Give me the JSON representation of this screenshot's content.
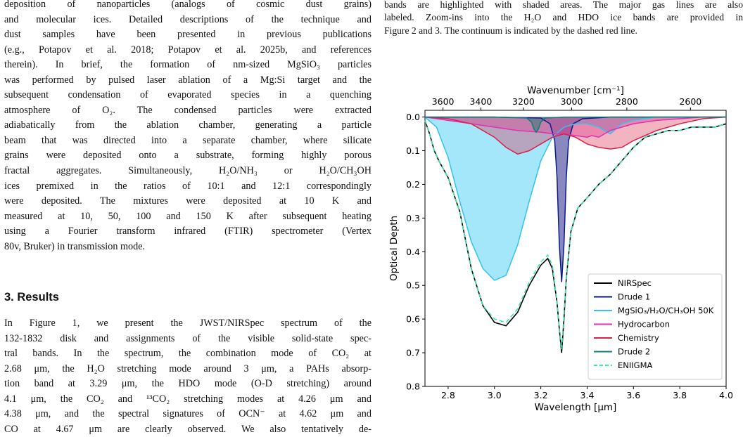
{
  "left_column": {
    "para1_lines": [
      "deposition of nanoparticles (analogs of cosmic dust grains)",
      "and molecular ices. Detailed descriptions of the technique and",
      "dust samples have been presented in previous publications",
      "(e.g., Potapov et al. 2018; Potapov et al. 2025b, and references",
      "therein). In brief, the formation of nm-sized MgSiO₃ particles",
      "was performed by pulsed laser ablation of a Mg:Si target and the",
      "subsequent condensation of evaporated species in a quenching",
      "atmosphere of O₂. The condensed particles were extracted",
      "adiabatically from the ablation chamber, generating a particle",
      "beam that was directed into a separate chamber, where silicate",
      "grains were deposited onto a substrate, forming highly porous",
      "fractal aggregates. Simultaneously, H₂O/NH₃ or H₂O/CH₃OH",
      "ices premixed in the ratios of 10:1 and 12:1 correspondingly",
      "were deposited. The mixtures were deposited at 10 K and",
      "measured at 10, 50, 100 and 150 K after subsequent heating",
      "using a Fourier transform infrared (FTIR) spectrometer (Vertex",
      "80v, Bruker) in transmission mode."
    ],
    "section_title": "3. Results",
    "para2_lines": [
      "In Figure 1, we present the JWST/NIRSpec spectrum of the",
      "132-1832 disk and assignments of the visible solid-state spec-",
      "tral bands. In the spectrum, the combination mode of CO₂ at",
      "2.68 μm, the H₂O stretching mode around 3 μm, a PAHs absorp-",
      "tion band at 3.29 μm, the HDO mode (O-D stretching) around",
      "4.1 μm, the CO₂ and ¹³CO₂ stretching modes at 4.26 μm and",
      "4.38 μm, and the spectral signatures of OCN⁻ at 4.62 μm and",
      "CO at 4.67 μm are clearly observed. We also tentatively de-"
    ]
  },
  "caption_lines": [
    "bands are highlighted with shaded areas. The major gas lines are also",
    "labeled. Zoom-ins into the H₂O and HDO ice bands are provided in",
    "Figure 2 and 3. The continuum is indicated by the dashed red line."
  ],
  "chart_data": {
    "type": "line",
    "xlabel": "Wavelength [μm]",
    "ylabel": "Optical Depth",
    "top_xlabel": "Wavenumber [cm⁻¹]",
    "xlim": [
      2.7,
      4.0
    ],
    "ylim": [
      0.8,
      -0.02
    ],
    "y_inverted": true,
    "grid": false,
    "legend_position": "lower-right",
    "x_ticks": [
      "2.8",
      "3.0",
      "3.2",
      "3.4",
      "3.6",
      "3.8",
      "4.0"
    ],
    "y_ticks": [
      "0.0",
      "0.1",
      "0.2",
      "0.3",
      "0.4",
      "0.5",
      "0.6",
      "0.7",
      "0.8"
    ],
    "top_ticks": [
      "3600",
      "3400",
      "3200",
      "3000",
      "2800",
      "2600"
    ],
    "series": [
      {
        "name": "NIRSpec",
        "color": "#000000",
        "style": "solid",
        "x": [
          2.7,
          2.72,
          2.74,
          2.76,
          2.8,
          2.85,
          2.9,
          2.95,
          3.0,
          3.05,
          3.1,
          3.15,
          3.2,
          3.23,
          3.25,
          3.27,
          3.28,
          3.29,
          3.3,
          3.31,
          3.33,
          3.36,
          3.4,
          3.45,
          3.5,
          3.55,
          3.6,
          3.65,
          3.7,
          3.75,
          3.8,
          3.85,
          3.9,
          3.95,
          4.0
        ],
        "y": [
          0.01,
          0.05,
          0.1,
          0.13,
          0.18,
          0.28,
          0.45,
          0.56,
          0.61,
          0.62,
          0.58,
          0.5,
          0.44,
          0.42,
          0.45,
          0.55,
          0.63,
          0.7,
          0.6,
          0.48,
          0.34,
          0.27,
          0.24,
          0.2,
          0.17,
          0.13,
          0.09,
          0.06,
          0.05,
          0.04,
          0.04,
          0.03,
          0.03,
          0.03,
          0.02
        ]
      },
      {
        "name": "Drude 1",
        "color": "#0a1a8f",
        "style": "solid",
        "x": [
          2.7,
          3.0,
          3.2,
          3.24,
          3.26,
          3.27,
          3.28,
          3.29,
          3.3,
          3.31,
          3.32,
          3.34,
          3.38,
          3.5,
          4.0
        ],
        "y": [
          0.0,
          0.0,
          0.003,
          0.02,
          0.07,
          0.18,
          0.38,
          0.49,
          0.38,
          0.18,
          0.07,
          0.02,
          0.005,
          0.0,
          0.0
        ]
      },
      {
        "name": "MgSiO₃/H₂O/CH₃OH 50K",
        "color": "#33c3ee",
        "style": "solid",
        "x": [
          2.7,
          2.75,
          2.8,
          2.85,
          2.9,
          2.95,
          3.0,
          3.05,
          3.1,
          3.15,
          3.2,
          3.25,
          3.3,
          3.35,
          3.4,
          3.45,
          3.5,
          3.55,
          3.6,
          3.7,
          3.8,
          4.0
        ],
        "y": [
          0.0,
          0.03,
          0.12,
          0.25,
          0.37,
          0.45,
          0.485,
          0.47,
          0.38,
          0.25,
          0.13,
          0.06,
          0.03,
          0.02,
          0.02,
          0.03,
          0.05,
          0.02,
          0.01,
          0.0,
          0.0,
          0.0
        ]
      },
      {
        "name": "Hydrocarbon",
        "color": "#e32eb5",
        "style": "solid",
        "x": [
          2.7,
          2.8,
          2.9,
          3.0,
          3.1,
          3.2,
          3.25,
          3.3,
          3.35,
          3.4,
          3.42,
          3.45,
          3.5,
          3.6,
          3.7,
          3.8,
          3.9,
          4.0
        ],
        "y": [
          0.0,
          0.01,
          0.02,
          0.03,
          0.04,
          0.045,
          0.05,
          0.05,
          0.055,
          0.06,
          0.055,
          0.06,
          0.04,
          0.02,
          0.01,
          0.005,
          0.0,
          0.0
        ]
      },
      {
        "name": "Chemistry",
        "color": "#dc2048",
        "style": "solid",
        "x": [
          2.7,
          2.8,
          2.9,
          3.0,
          3.05,
          3.1,
          3.15,
          3.2,
          3.25,
          3.3,
          3.35,
          3.4,
          3.45,
          3.5,
          3.55,
          3.6,
          3.7,
          3.8,
          3.9,
          4.0
        ],
        "y": [
          0.0,
          0.005,
          0.02,
          0.06,
          0.09,
          0.11,
          0.1,
          0.08,
          0.06,
          0.05,
          0.06,
          0.08,
          0.09,
          0.095,
          0.09,
          0.07,
          0.04,
          0.02,
          0.005,
          0.0
        ]
      },
      {
        "name": "Drude 2",
        "color": "#0d7d72",
        "style": "solid",
        "x": [
          2.7,
          3.0,
          3.14,
          3.16,
          3.17,
          3.18,
          3.19,
          3.2,
          3.22,
          3.3,
          4.0
        ],
        "y": [
          0.0,
          0.0,
          0.003,
          0.015,
          0.035,
          0.045,
          0.035,
          0.015,
          0.003,
          0.0,
          0.0
        ]
      },
      {
        "name": "ENIIGMA",
        "color": "#34e8b2",
        "style": "dashed",
        "x": [
          2.7,
          2.72,
          2.74,
          2.76,
          2.8,
          2.85,
          2.9,
          2.95,
          3.0,
          3.05,
          3.1,
          3.15,
          3.2,
          3.23,
          3.25,
          3.27,
          3.28,
          3.29,
          3.3,
          3.31,
          3.33,
          3.36,
          3.4,
          3.45,
          3.5,
          3.55,
          3.6,
          3.65,
          3.7,
          3.75,
          3.8,
          3.85,
          3.9,
          3.95,
          4.0
        ],
        "y": [
          0.01,
          0.05,
          0.1,
          0.13,
          0.18,
          0.28,
          0.45,
          0.56,
          0.6,
          0.61,
          0.57,
          0.49,
          0.43,
          0.41,
          0.44,
          0.55,
          0.63,
          0.69,
          0.59,
          0.48,
          0.34,
          0.27,
          0.24,
          0.2,
          0.17,
          0.13,
          0.09,
          0.06,
          0.05,
          0.04,
          0.04,
          0.03,
          0.03,
          0.03,
          0.02
        ]
      }
    ]
  }
}
